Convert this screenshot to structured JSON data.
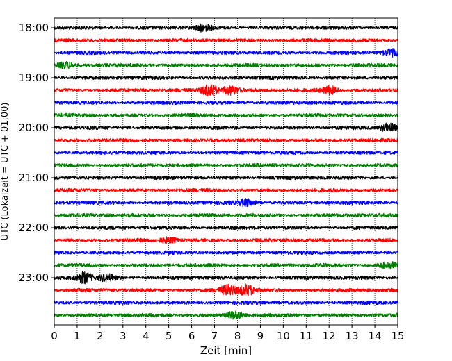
{
  "chart_data": {
    "type": "line",
    "title": "",
    "xlabel": "Zeit  [min]",
    "ylabel": "UTC (Lokalzeit = UTC + 01:00)",
    "x_ticks": [
      0,
      1,
      2,
      3,
      4,
      5,
      6,
      7,
      8,
      9,
      10,
      11,
      12,
      13,
      14,
      15
    ],
    "x_tick_labels": [
      "0",
      "1",
      "2",
      "3",
      "4",
      "5",
      "6",
      "7",
      "8",
      "9",
      "10",
      "11",
      "12",
      "13",
      "14",
      "15"
    ],
    "xlim": [
      0,
      15
    ],
    "grid": "vertical dotted at each minute",
    "y_tick_labels": [
      "18:00",
      "19:00",
      "20:00",
      "21:00",
      "22:00",
      "23:00"
    ],
    "trace_interval_min": 15,
    "trace_color_cycle": [
      "#000000",
      "#ff0000",
      "#0000ff",
      "#008000"
    ],
    "traces": [
      {
        "start": "18:00",
        "color": "#000000",
        "events": [
          {
            "t": 6.5,
            "amp": 1.3
          }
        ]
      },
      {
        "start": "18:15",
        "color": "#ff0000",
        "events": []
      },
      {
        "start": "18:30",
        "color": "#0000ff",
        "events": [
          {
            "t": 14.7,
            "amp": 1.4
          }
        ]
      },
      {
        "start": "18:45",
        "color": "#008000",
        "events": [
          {
            "t": 0.5,
            "amp": 1.2
          }
        ]
      },
      {
        "start": "19:00",
        "color": "#000000",
        "events": []
      },
      {
        "start": "19:15",
        "color": "#ff0000",
        "events": [
          {
            "t": 6.8,
            "amp": 2.8
          },
          {
            "t": 7.7,
            "amp": 2.0
          },
          {
            "t": 12.0,
            "amp": 1.8
          }
        ]
      },
      {
        "start": "19:30",
        "color": "#0000ff",
        "events": []
      },
      {
        "start": "19:45",
        "color": "#008000",
        "events": []
      },
      {
        "start": "20:00",
        "color": "#000000",
        "events": [
          {
            "t": 14.6,
            "amp": 2.0
          }
        ]
      },
      {
        "start": "20:15",
        "color": "#ff0000",
        "events": []
      },
      {
        "start": "20:30",
        "color": "#0000ff",
        "events": []
      },
      {
        "start": "20:45",
        "color": "#008000",
        "events": []
      },
      {
        "start": "21:00",
        "color": "#000000",
        "events": []
      },
      {
        "start": "21:15",
        "color": "#ff0000",
        "events": []
      },
      {
        "start": "21:30",
        "color": "#0000ff",
        "events": [
          {
            "t": 8.4,
            "amp": 1.5
          }
        ]
      },
      {
        "start": "21:45",
        "color": "#008000",
        "events": []
      },
      {
        "start": "22:00",
        "color": "#000000",
        "events": []
      },
      {
        "start": "22:15",
        "color": "#ff0000",
        "events": [
          {
            "t": 5.0,
            "amp": 1.2
          }
        ]
      },
      {
        "start": "22:30",
        "color": "#0000ff",
        "events": []
      },
      {
        "start": "22:45",
        "color": "#008000",
        "events": [
          {
            "t": 14.6,
            "amp": 1.4
          }
        ]
      },
      {
        "start": "23:00",
        "color": "#000000",
        "events": [
          {
            "t": 1.3,
            "amp": 2.4
          },
          {
            "t": 2.3,
            "amp": 1.5
          }
        ]
      },
      {
        "start": "23:15",
        "color": "#ff0000",
        "events": [
          {
            "t": 7.6,
            "amp": 2.2
          },
          {
            "t": 8.4,
            "amp": 2.4
          }
        ]
      },
      {
        "start": "23:30",
        "color": "#0000ff",
        "events": []
      },
      {
        "start": "23:45",
        "color": "#008000",
        "events": [
          {
            "t": 7.9,
            "amp": 1.7
          }
        ]
      }
    ]
  }
}
